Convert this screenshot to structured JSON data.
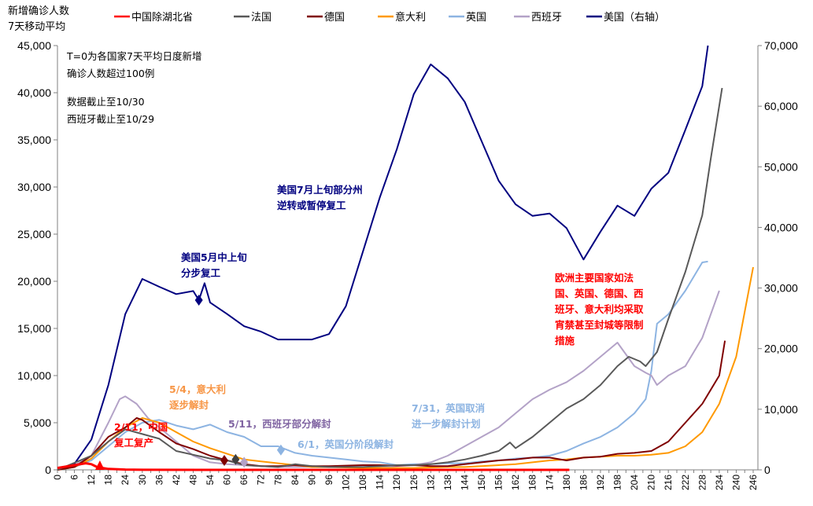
{
  "chart_data": {
    "type": "line",
    "ylabel_left": [
      "新增确诊人数",
      "7天移动平均"
    ],
    "xlim": [
      0,
      246
    ],
    "ylim_left": [
      0,
      45000
    ],
    "ylim_right": [
      0,
      70000
    ],
    "x_ticks": [
      0,
      6,
      12,
      18,
      24,
      30,
      36,
      42,
      48,
      54,
      60,
      66,
      72,
      78,
      84,
      90,
      96,
      102,
      108,
      114,
      120,
      126,
      132,
      138,
      144,
      150,
      156,
      162,
      168,
      174,
      180,
      186,
      192,
      198,
      204,
      210,
      216,
      222,
      228,
      234,
      240,
      246
    ],
    "y_ticks_left": [
      "0",
      "5,000",
      "10,000",
      "15,000",
      "20,000",
      "25,000",
      "30,000",
      "35,000",
      "40,000",
      "45,000"
    ],
    "y_ticks_right": [
      "0",
      "10,000",
      "20,000",
      "30,000",
      "40,000",
      "50,000",
      "60,000",
      "70,000"
    ],
    "legend_position": "top",
    "grid": false,
    "series": [
      {
        "name": "中国除湖北省",
        "color": "#ff0000",
        "axis": "left",
        "x": [
          0,
          6,
          10,
          12,
          14,
          18,
          24,
          30,
          60,
          120,
          181
        ],
        "y": [
          200,
          500,
          700,
          600,
          300,
          100,
          30,
          10,
          0,
          0,
          0
        ]
      },
      {
        "name": "法国",
        "color": "#595959",
        "axis": "left",
        "x": [
          0,
          12,
          18,
          24,
          30,
          36,
          42,
          48,
          54,
          60,
          66,
          72,
          78,
          84,
          90,
          96,
          102,
          108,
          114,
          120,
          126,
          132,
          138,
          144,
          150,
          156,
          160,
          162,
          168,
          174,
          180,
          186,
          192,
          198,
          202,
          206,
          208,
          212,
          216,
          222,
          228,
          231,
          235
        ],
        "y": [
          0,
          1500,
          3000,
          4300,
          3800,
          3300,
          2000,
          1600,
          1200,
          1000,
          500,
          400,
          300,
          600,
          400,
          300,
          300,
          300,
          400,
          500,
          500,
          600,
          800,
          1100,
          1500,
          2000,
          2900,
          2300,
          3500,
          5000,
          6500,
          7500,
          9000,
          11000,
          12000,
          11500,
          11000,
          12500,
          16000,
          21000,
          27000,
          33000,
          40500
        ]
      },
      {
        "name": "德国",
        "color": "#7f0000",
        "axis": "left",
        "x": [
          0,
          6,
          12,
          18,
          24,
          28,
          30,
          36,
          42,
          48,
          54,
          60,
          66,
          72,
          78,
          84,
          90,
          96,
          102,
          108,
          114,
          120,
          126,
          132,
          138,
          144,
          150,
          156,
          162,
          168,
          174,
          180,
          186,
          192,
          198,
          204,
          210,
          216,
          222,
          228,
          234,
          236
        ],
        "y": [
          0,
          300,
          1500,
          3500,
          4500,
          5500,
          5300,
          4000,
          2800,
          2200,
          1500,
          1000,
          600,
          400,
          400,
          500,
          400,
          400,
          450,
          500,
          500,
          450,
          500,
          400,
          400,
          600,
          800,
          1000,
          1100,
          1300,
          1300,
          1000,
          1300,
          1400,
          1700,
          1800,
          2000,
          3000,
          5000,
          7000,
          10000,
          13700
        ]
      },
      {
        "name": "意大利",
        "color": "#ff9900",
        "axis": "left",
        "x": [
          0,
          6,
          12,
          18,
          24,
          30,
          36,
          42,
          48,
          54,
          60,
          66,
          72,
          78,
          84,
          90,
          96,
          102,
          108,
          114,
          120,
          126,
          132,
          138,
          144,
          150,
          156,
          162,
          168,
          174,
          180,
          186,
          192,
          198,
          204,
          210,
          216,
          222,
          228,
          234,
          240,
          246
        ],
        "y": [
          0,
          300,
          1200,
          3000,
          4500,
          5500,
          5000,
          4000,
          3000,
          2300,
          1700,
          1100,
          900,
          700,
          500,
          300,
          300,
          250,
          200,
          200,
          200,
          200,
          250,
          300,
          300,
          400,
          500,
          600,
          800,
          1000,
          1100,
          1300,
          1400,
          1500,
          1500,
          1600,
          1800,
          2500,
          4000,
          7000,
          12000,
          21500
        ]
      },
      {
        "name": "英国",
        "color": "#8db4e2",
        "axis": "left",
        "x": [
          0,
          6,
          12,
          18,
          24,
          30,
          36,
          42,
          48,
          54,
          60,
          66,
          72,
          78,
          84,
          90,
          96,
          102,
          108,
          114,
          120,
          126,
          132,
          138,
          144,
          150,
          156,
          162,
          168,
          174,
          180,
          186,
          192,
          198,
          204,
          208,
          210,
          212,
          216,
          222,
          228,
          230
        ],
        "y": [
          0,
          300,
          1000,
          2500,
          4000,
          5000,
          5300,
          4700,
          4300,
          4800,
          4000,
          3500,
          2500,
          2500,
          1800,
          1500,
          1300,
          1100,
          900,
          800,
          500,
          600,
          600,
          700,
          700,
          900,
          1000,
          1200,
          1300,
          1500,
          2000,
          2800,
          3500,
          4500,
          6000,
          7500,
          10500,
          15500,
          16500,
          19000,
          22000,
          22100
        ]
      },
      {
        "name": "西班牙",
        "color": "#b3a2c7",
        "axis": "left",
        "x": [
          0,
          6,
          12,
          18,
          22,
          24,
          28,
          32,
          36,
          42,
          48,
          54,
          60,
          66,
          72,
          78,
          84,
          90,
          96,
          102,
          108,
          114,
          120,
          126,
          132,
          138,
          144,
          150,
          156,
          162,
          168,
          174,
          180,
          186,
          192,
          198,
          204,
          208,
          210,
          212,
          216,
          222,
          228,
          234
        ],
        "y": [
          0,
          500,
          1500,
          5000,
          7500,
          7800,
          7000,
          5500,
          4500,
          3000,
          1500,
          800,
          600,
          500,
          400,
          300,
          300,
          300,
          300,
          300,
          300,
          300,
          400,
          500,
          800,
          1500,
          2500,
          3500,
          4500,
          6000,
          7500,
          8500,
          9300,
          10500,
          12000,
          13500,
          11000,
          10300,
          10000,
          9000,
          10000,
          11000,
          14000,
          19000
        ]
      },
      {
        "name": "美国（右轴）",
        "color": "#000080",
        "axis": "right",
        "x": [
          0,
          6,
          12,
          18,
          24,
          30,
          36,
          42,
          48,
          50,
          52,
          54,
          60,
          66,
          72,
          78,
          84,
          90,
          96,
          102,
          108,
          114,
          120,
          126,
          132,
          138,
          144,
          150,
          156,
          162,
          168,
          174,
          180,
          186,
          192,
          198,
          204,
          210,
          216,
          222,
          228,
          230
        ],
        "y": [
          0,
          1000,
          5000,
          14000,
          25700,
          31500,
          30200,
          29000,
          29500,
          28000,
          30800,
          27600,
          25700,
          23700,
          22800,
          21500,
          21500,
          21500,
          22400,
          27000,
          36000,
          45000,
          52900,
          62000,
          66900,
          64600,
          60700,
          54200,
          47700,
          43800,
          41900,
          42300,
          39900,
          34700,
          39300,
          43600,
          41900,
          46400,
          49000,
          56100,
          63300,
          70000
        ]
      }
    ],
    "annotations": {
      "note1": [
        "T=0为各国家7天平均日度新增",
        "确诊人数超过100例"
      ],
      "note2": [
        "数据截止至10/30",
        "西班牙截止至10/29"
      ],
      "us_may": [
        "美国5月中上旬",
        "分步复工"
      ],
      "us_july": [
        "美国7月上旬部分州",
        "逆转或暂停复工"
      ],
      "italy": [
        "5/4，意大利",
        "逐步解封"
      ],
      "spain": [
        "5/11，西班牙部分解封"
      ],
      "uk_june": [
        "6/1，英国分阶段解封"
      ],
      "uk_july": [
        "7/31，英国取消",
        "进一步解封计划"
      ],
      "china": [
        "2/11，中国",
        "复工复产"
      ],
      "europe": [
        "欧洲主要国家如法",
        "国、英国、德国、西",
        "班牙、意大利均采取",
        "宵禁甚至封城等限制",
        "措施"
      ]
    }
  }
}
